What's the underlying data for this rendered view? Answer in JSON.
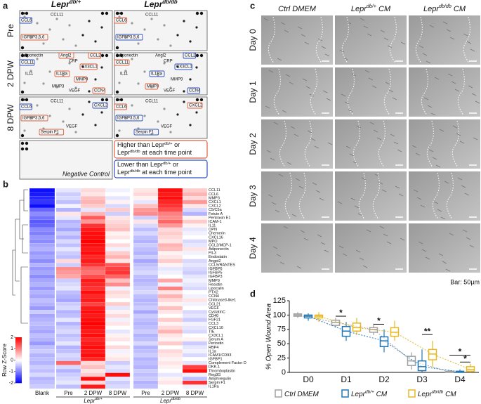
{
  "panel_a": {
    "label": "a",
    "column_headers": [
      [
        {
          "text": "Lepr"
        },
        {
          "sup": "db/+"
        }
      ],
      [
        {
          "text": "Lepr"
        },
        {
          "sup": "db/db"
        }
      ]
    ],
    "row_labels": [
      "Pre",
      "2 DPW",
      "8 DPW"
    ],
    "cells": [
      [
        [
          {
            "text": "CCL11"
          },
          {
            "text": "CCL6",
            "box": "#3050c0"
          },
          {
            "text": "IGFBP3,5,6",
            "box": "#e0603c"
          }
        ],
        [
          {
            "text": "CCL11"
          },
          {
            "text": "CCL6",
            "box": "#e0603c"
          },
          {
            "text": "IGFBP3,5,6",
            "box": "#3050c0"
          }
        ]
      ],
      [
        [
          {
            "text": "Adiponectin"
          },
          {
            "text": "Angl2",
            "box": "#e0603c"
          },
          {
            "text": "CCL2",
            "box": "#e0603c"
          },
          {
            "text": "CRP"
          },
          {
            "text": "CX3CL1",
            "box": "#e0603c"
          },
          {
            "text": "CCL11",
            "box": "#3050c0"
          },
          {
            "text": "IL11"
          },
          {
            "text": "IL1Ra",
            "box": "#e0603c"
          },
          {
            "text": "MMP9",
            "box": "#e0603c"
          },
          {
            "text": "MMP3"
          },
          {
            "text": "VEGF"
          },
          {
            "text": "CCN4",
            "box": "#e0603c"
          }
        ],
        [
          {
            "text": "Adiponectin"
          },
          {
            "text": "Angl2"
          },
          {
            "text": "CCL2",
            "box": "#3050c0"
          },
          {
            "text": "CRP"
          },
          {
            "text": "CX3CL1",
            "box": "#3050c0"
          },
          {
            "text": "CCL11",
            "box": "#e0603c"
          },
          {
            "text": "IL11"
          },
          {
            "text": "IL1Ra",
            "box": "#3050c0"
          },
          {
            "text": "MMP9"
          },
          {
            "text": "MMP3",
            "box": "#e0603c"
          },
          {
            "text": "VEGF"
          },
          {
            "text": "CCN4",
            "box": "#3050c0"
          }
        ]
      ],
      [
        [
          {
            "text": "CCL11"
          },
          {
            "text": "CXCL2",
            "box": "#3050c0"
          },
          {
            "text": "CCL6",
            "box": "#3050c0"
          },
          {
            "text": "IGFBP3,5,6",
            "box": "#e0603c"
          },
          {
            "text": "VEGF"
          },
          {
            "text": "Serpin F1",
            "box": "#e0603c"
          }
        ],
        [
          {
            "text": "CCL11"
          },
          {
            "text": "CXCL2",
            "box": "#e0603c"
          },
          {
            "text": "CCL6",
            "box": "#e0603c"
          },
          {
            "text": "IGFBP3,5,6",
            "box": "#3050c0"
          },
          {
            "text": "VEGF"
          },
          {
            "text": "Serpin F1",
            "box": "#3050c0"
          }
        ]
      ]
    ],
    "legend": [
      {
        "color": "#e0603c",
        "lines": [
          [
            {
              "text": "Higher than Lepr"
            },
            {
              "sup": "db/+"
            },
            {
              "text": " or"
            }
          ],
          [
            {
              "text": "Lepr"
            },
            {
              "sup": "db/db"
            },
            {
              "text": " at each time point"
            }
          ]
        ]
      },
      {
        "color": "#3050c0",
        "lines": [
          [
            {
              "text": "Lower than Lepr"
            },
            {
              "sup": "db/+"
            },
            {
              "text": " or"
            }
          ],
          [
            {
              "text": "Lepr"
            },
            {
              "sup": "db/db"
            },
            {
              "text": " at each time point"
            }
          ]
        ]
      }
    ],
    "negative_control": "Negative Control"
  },
  "panel_c": {
    "label": "c",
    "columns": [
      [
        {
          "text": "Ctrl DMEM"
        }
      ],
      [
        {
          "text": "Lepr"
        },
        {
          "sup": "db/+"
        },
        {
          "text": " CM"
        }
      ],
      [
        {
          "text": "Lepr"
        },
        {
          "sup": "db/db"
        },
        {
          "text": " CM"
        }
      ]
    ],
    "rows": [
      "Day 0",
      "Day 1",
      "Day 2",
      "Day 3",
      "Day 4"
    ],
    "scale_bar": "Bar: 50µm"
  },
  "chart_data": [
    {
      "type": "heatmap",
      "panel_label": "b",
      "columns": [
        "Blank",
        "Pre",
        "2 DPW",
        "8 DPW",
        "Pre",
        "2 DPW",
        "8 DPW"
      ],
      "groups": [
        [
          {
            "text": "Lepr"
          },
          {
            "sup": "db/+"
          }
        ],
        [
          {
            "text": "Lepr"
          },
          {
            "sup": "db/db"
          }
        ]
      ],
      "rows": [
        "CCL11",
        "CCL6",
        "MMP3",
        "CXCL1",
        "CXCL2",
        "C5/C5a",
        "Fetuin A",
        "Pentraxin E1",
        "ICAM-1",
        "IL11",
        "OPN",
        "Chemerin",
        "CXCL16",
        "MPO",
        "CCL2/MCP-1",
        "Adiponectin",
        "Flt-3",
        "Endostatin",
        "Angpt2",
        "CCL5/RANTES",
        "IGFBP6",
        "IGFBP5",
        "IGFBP3",
        "MMP9",
        "Resistin",
        "Lipocalin",
        "PTX2",
        "CCN4",
        "Chitinase3-like1",
        "CCL21",
        "VEGF",
        "CystatinC",
        "CD40",
        "FGF21",
        "CCL3",
        "CXCL10",
        "TIE",
        "CX3CL1",
        "Serum A",
        "Periostin",
        "RBP4",
        "IL1a",
        "ICAM1/CD93",
        "IGFBP1",
        "Complement Factor D",
        "DKK-1",
        "Thromboplastin",
        "Reg3G",
        "Amphiregulin",
        "Serpin F1",
        "IL1Ra"
      ],
      "values": [
        [
          -1.9,
          -0.2,
          0.3,
          -0.1,
          0.2,
          1.9,
          0.4
        ],
        [
          -1.8,
          -0.4,
          0.2,
          0.0,
          0.3,
          1.8,
          0.6
        ],
        [
          -1.7,
          -0.3,
          0.5,
          -0.2,
          0.1,
          1.9,
          0.3
        ],
        [
          -1.6,
          -0.5,
          0.6,
          0.1,
          -0.2,
          1.7,
          0.8
        ],
        [
          -1.9,
          -0.1,
          0.4,
          -0.3,
          0.5,
          1.6,
          0.2
        ],
        [
          -1.2,
          -0.6,
          -0.2,
          0.4,
          0.8,
          1.4,
          -0.3
        ],
        [
          -0.9,
          0.2,
          0.6,
          -0.4,
          0.9,
          1.0,
          -0.6
        ],
        [
          -1.1,
          -0.2,
          1.3,
          0.2,
          -0.4,
          0.9,
          0.1
        ],
        [
          -1.3,
          -0.6,
          0.8,
          0.3,
          0.2,
          1.2,
          0.4
        ],
        [
          -1.2,
          -0.5,
          1.6,
          0.4,
          -0.3,
          0.8,
          0.1
        ],
        [
          -0.9,
          -0.7,
          1.8,
          0.5,
          -0.5,
          0.3,
          -0.2
        ],
        [
          -1.0,
          -0.4,
          1.9,
          0.1,
          -0.3,
          0.4,
          -0.1
        ],
        [
          -0.8,
          -0.6,
          1.9,
          0.2,
          -0.5,
          0.3,
          0.0
        ],
        [
          -0.9,
          -0.3,
          2.0,
          0.0,
          -0.6,
          0.2,
          -0.3
        ],
        [
          -0.7,
          -0.5,
          1.9,
          0.3,
          -0.4,
          0.6,
          -0.2
        ],
        [
          -0.6,
          -0.2,
          1.8,
          -0.1,
          -0.5,
          0.5,
          0.2
        ],
        [
          -0.8,
          -0.4,
          1.9,
          0.4,
          -0.6,
          0.1,
          -0.1
        ],
        [
          -0.7,
          -0.5,
          1.7,
          0.6,
          -0.4,
          0.2,
          0.0
        ],
        [
          -0.9,
          0.3,
          1.8,
          0.2,
          -0.7,
          0.4,
          -0.3
        ],
        [
          -0.6,
          -0.4,
          1.6,
          1.3,
          -0.5,
          0.1,
          -0.2
        ],
        [
          -0.8,
          0.9,
          1.2,
          1.5,
          -0.4,
          -0.2,
          -0.3
        ],
        [
          -0.7,
          0.8,
          1.1,
          1.6,
          -0.3,
          -0.1,
          -0.4
        ],
        [
          -0.9,
          0.7,
          1.4,
          1.2,
          -0.5,
          0.0,
          -0.2
        ],
        [
          -0.7,
          -0.4,
          1.8,
          0.5,
          -0.6,
          0.7,
          -0.1
        ],
        [
          -0.6,
          -0.3,
          1.7,
          0.9,
          -0.5,
          -0.1,
          -0.2
        ],
        [
          -0.8,
          -0.2,
          1.6,
          -0.1,
          -0.4,
          1.0,
          -0.3
        ],
        [
          -0.6,
          -0.5,
          1.9,
          0.3,
          -0.3,
          0.2,
          0.0
        ],
        [
          -0.7,
          -0.6,
          1.7,
          0.2,
          -0.5,
          0.6,
          -0.1
        ],
        [
          -0.5,
          -0.7,
          1.8,
          0.0,
          -0.6,
          0.3,
          0.2
        ],
        [
          -0.6,
          -0.4,
          1.5,
          0.4,
          -0.5,
          0.1,
          -0.1
        ],
        [
          -0.8,
          -0.3,
          1.8,
          -0.2,
          -0.4,
          0.5,
          0.0
        ],
        [
          -0.4,
          -0.6,
          1.9,
          0.1,
          -0.7,
          0.2,
          -0.3
        ],
        [
          -0.7,
          -0.5,
          1.8,
          0.3,
          -0.4,
          0.0,
          -0.2
        ],
        [
          -0.6,
          -0.2,
          1.9,
          -0.1,
          -0.5,
          0.4,
          -0.4
        ],
        [
          -0.5,
          -0.6,
          2.0,
          0.2,
          -0.6,
          0.1,
          -0.1
        ],
        [
          -0.6,
          -0.4,
          1.9,
          0.0,
          -0.5,
          0.3,
          -0.2
        ],
        [
          -0.7,
          -0.3,
          1.8,
          -0.2,
          -0.4,
          0.6,
          -0.3
        ],
        [
          -0.5,
          -0.5,
          1.9,
          0.1,
          -0.6,
          0.2,
          0.0
        ],
        [
          -0.6,
          -0.4,
          1.7,
          0.2,
          -0.5,
          0.1,
          0.1
        ],
        [
          -0.8,
          -0.2,
          1.8,
          0.0,
          -0.3,
          0.4,
          -0.4
        ],
        [
          -0.5,
          -0.6,
          1.9,
          0.3,
          -0.6,
          0.0,
          -0.2
        ],
        [
          -0.4,
          -0.5,
          1.8,
          -0.1,
          -0.5,
          0.3,
          -0.1
        ],
        [
          -0.6,
          -0.3,
          1.9,
          0.1,
          -0.4,
          0.2,
          -0.3
        ],
        [
          -0.5,
          -0.4,
          1.7,
          0.2,
          -0.6,
          0.1,
          0.0
        ],
        [
          -0.6,
          1.2,
          0.3,
          -0.4,
          -0.5,
          0.2,
          -0.2
        ],
        [
          -0.4,
          -0.3,
          0.5,
          -0.2,
          -0.6,
          0.1,
          1.5
        ],
        [
          -0.5,
          -0.6,
          0.2,
          -0.3,
          -0.4,
          0.0,
          1.9
        ],
        [
          -0.3,
          -0.4,
          0.4,
          1.9,
          -0.5,
          -0.2,
          -0.1
        ],
        [
          -0.6,
          -0.3,
          1.9,
          -0.2,
          -0.4,
          0.1,
          -0.5
        ],
        [
          -0.5,
          -0.2,
          0.3,
          -0.4,
          -0.6,
          0.2,
          1.6
        ],
        [
          -0.4,
          -0.5,
          1.8,
          -0.3,
          -0.5,
          0.0,
          -0.1
        ]
      ],
      "zlim": [
        -2,
        2
      ],
      "zticks": [
        -2,
        -1,
        0,
        1,
        2
      ],
      "colors": [
        "#0000ff",
        "#ffffff",
        "#ff0000"
      ],
      "colorbar_label": "Row Z-Score"
    },
    {
      "type": "box",
      "panel_label": "d",
      "ylabel": "% Open Wound Area",
      "categories": [
        "D0",
        "D1",
        "D2",
        "D3",
        "D4"
      ],
      "ylim": [
        0,
        125
      ],
      "yticks": [
        0,
        25,
        50,
        75,
        100,
        125
      ],
      "series": [
        {
          "name": [
            {
              "text": "Ctrl DMEM"
            }
          ],
          "color": "#a0a0a0",
          "boxes": [
            [
              95,
              98,
              100,
              102,
              105
            ],
            [
              78,
              82,
              87,
              91,
              95
            ],
            [
              65,
              70,
              75,
              78,
              85
            ],
            [
              5,
              12,
              20,
              28,
              35
            ],
            [
              0,
              0,
              1,
              2,
              4
            ]
          ]
        },
        {
          "name": [
            {
              "text": "Lepr"
            },
            {
              "sup": "db/+"
            },
            {
              "text": " CM"
            }
          ],
          "color": "#1f77b4",
          "boxes": [
            [
              90,
              95,
              98,
              100,
              103
            ],
            [
              55,
              63,
              72,
              80,
              88
            ],
            [
              35,
              45,
              55,
              62,
              75
            ],
            [
              0,
              3,
              10,
              20,
              40
            ],
            [
              0,
              0,
              1,
              2,
              5
            ]
          ]
        },
        {
          "name": [
            {
              "text": "Lepr"
            },
            {
              "sup": "db/db"
            },
            {
              "text": " CM"
            }
          ],
          "color": "#e8b820",
          "boxes": [
            [
              88,
              95,
              98,
              100,
              105
            ],
            [
              65,
              72,
              78,
              86,
              95
            ],
            [
              55,
              63,
              70,
              78,
              90
            ],
            [
              10,
              22,
              32,
              40,
              55
            ],
            [
              0,
              2,
              5,
              10,
              15
            ]
          ]
        }
      ],
      "annotations": [
        "*",
        "*",
        "**",
        "*",
        "*"
      ]
    }
  ]
}
